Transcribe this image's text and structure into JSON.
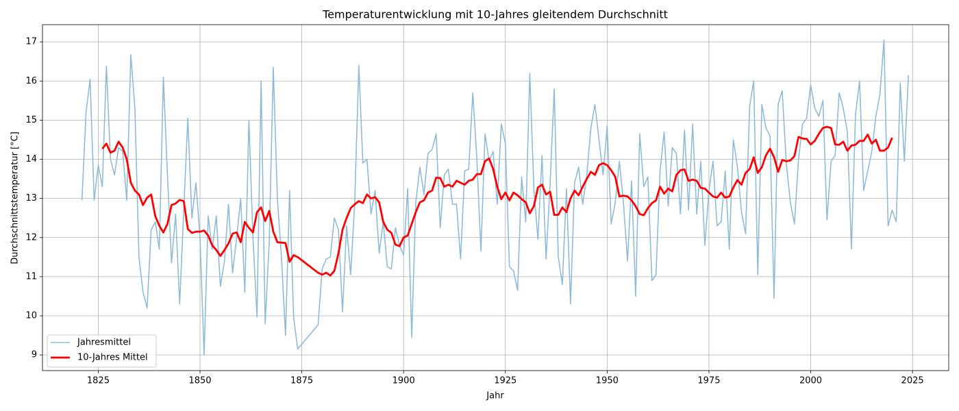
{
  "chart_data": {
    "type": "line",
    "title": "Temperaturentwicklung mit 10-Jahres gleitendem Durchschnitt",
    "xlabel": "Jahr",
    "ylabel": "Durchschnittstemperatur [°C]",
    "xlim": [
      1811.3,
      2033.9
    ],
    "ylim": [
      8.6,
      17.44
    ],
    "xticks": [
      1825,
      1850,
      1875,
      1900,
      1925,
      1950,
      1975,
      2000,
      2025
    ],
    "yticks": [
      9,
      10,
      11,
      12,
      13,
      14,
      15,
      16,
      17
    ],
    "grid": true,
    "legend": "lower left",
    "series": [
      {
        "name": "Jahresmittel",
        "color": "#8fbbd9",
        "x": [
          1821,
          1822,
          1823,
          1824,
          1825,
          1826,
          1827,
          1828,
          1829,
          1830,
          1831,
          1832,
          1833,
          1834,
          1835,
          1836,
          1837,
          1838,
          1839,
          1840,
          1841,
          1842,
          1843,
          1844,
          1845,
          1846,
          1847,
          1848,
          1849,
          1850,
          1851,
          1852,
          1853,
          1854,
          1855,
          1856,
          1857,
          1858,
          1859,
          1860,
          1861,
          1862,
          1863,
          1864,
          1865,
          1866,
          1867,
          1868,
          1869,
          1870,
          1871,
          1872,
          1873,
          1874,
          1879,
          1880,
          1881,
          1882,
          1883,
          1884,
          1885,
          1886,
          1887,
          1888,
          1889,
          1890,
          1891,
          1892,
          1893,
          1894,
          1895,
          1896,
          1897,
          1898,
          1899,
          1900,
          1901,
          1902,
          1903,
          1904,
          1905,
          1906,
          1907,
          1908,
          1909,
          1910,
          1911,
          1912,
          1913,
          1914,
          1915,
          1916,
          1917,
          1918,
          1919,
          1920,
          1921,
          1922,
          1923,
          1924,
          1925,
          1926,
          1927,
          1928,
          1929,
          1930,
          1931,
          1932,
          1933,
          1934,
          1935,
          1936,
          1937,
          1938,
          1939,
          1940,
          1941,
          1942,
          1943,
          1944,
          1945,
          1946,
          1947,
          1948,
          1949,
          1950,
          1951,
          1952,
          1953,
          1954,
          1955,
          1956,
          1957,
          1958,
          1959,
          1960,
          1961,
          1962,
          1963,
          1964,
          1965,
          1966,
          1967,
          1968,
          1969,
          1970,
          1971,
          1972,
          1973,
          1974,
          1975,
          1976,
          1977,
          1978,
          1979,
          1980,
          1981,
          1982,
          1983,
          1984,
          1985,
          1986,
          1987,
          1988,
          1989,
          1990,
          1991,
          1992,
          1993,
          1994,
          1995,
          1996,
          1997,
          1998,
          1999,
          2000,
          2001,
          2002,
          2003,
          2004,
          2005,
          2006,
          2007,
          2008,
          2009,
          2010,
          2011,
          2012,
          2013,
          2014,
          2015,
          2016,
          2017,
          2018,
          2019,
          2020,
          2021,
          2022,
          2023,
          2024
        ],
        "values": [
          12.95,
          15.2,
          16.05,
          12.95,
          13.85,
          13.3,
          16.38,
          14.0,
          13.6,
          14.3,
          14.2,
          12.95,
          16.67,
          15.3,
          11.5,
          10.6,
          10.2,
          12.2,
          12.4,
          11.7,
          16.1,
          13.6,
          11.35,
          12.6,
          10.3,
          12.7,
          15.05,
          12.5,
          13.4,
          12.0,
          9.0,
          12.55,
          11.7,
          12.55,
          10.75,
          11.4,
          12.85,
          11.1,
          12.0,
          13.0,
          10.6,
          15.0,
          12.0,
          9.97,
          16.0,
          9.8,
          11.9,
          16.35,
          13.0,
          11.5,
          9.5,
          13.2,
          9.95,
          9.15,
          9.77,
          11.2,
          11.45,
          11.5,
          12.5,
          12.2,
          10.1,
          12.3,
          11.05,
          12.9,
          16.4,
          13.9,
          14.0,
          12.6,
          13.2,
          11.6,
          12.4,
          11.25,
          11.2,
          12.25,
          11.8,
          11.55,
          13.25,
          9.45,
          12.9,
          13.8,
          13.1,
          14.15,
          14.25,
          14.65,
          12.25,
          13.6,
          13.75,
          12.85,
          12.85,
          11.45,
          13.7,
          13.75,
          15.7,
          14.0,
          11.65,
          14.65,
          13.95,
          14.2,
          12.85,
          14.9,
          14.4,
          11.25,
          11.15,
          10.65,
          13.55,
          12.4,
          16.2,
          13.25,
          11.95,
          14.1,
          11.45,
          13.4,
          15.8,
          11.5,
          10.8,
          13.25,
          10.3,
          13.4,
          13.8,
          12.85,
          13.6,
          14.8,
          15.4,
          14.5,
          13.6,
          14.85,
          12.35,
          12.9,
          13.95,
          12.9,
          11.4,
          13.45,
          10.5,
          14.65,
          13.3,
          13.55,
          10.9,
          11.05,
          13.7,
          14.7,
          12.8,
          14.3,
          14.15,
          12.6,
          14.75,
          12.7,
          14.9,
          12.6,
          13.95,
          11.8,
          13.2,
          13.95,
          12.3,
          12.4,
          13.7,
          11.7,
          14.5,
          13.8,
          12.65,
          12.1,
          15.35,
          16.0,
          11.05,
          15.4,
          14.8,
          14.6,
          10.45,
          15.4,
          15.75,
          13.9,
          12.9,
          12.35,
          14.0,
          14.9,
          15.05,
          15.9,
          15.3,
          15.1,
          15.5,
          12.45,
          13.95,
          14.1,
          15.7,
          15.3,
          14.7,
          11.7,
          15.15,
          16.0,
          13.2,
          13.7,
          14.2,
          15.1,
          15.65,
          17.05,
          12.3,
          12.7,
          12.4,
          15.95,
          13.95,
          16.15
        ]
      },
      {
        "name": "10-Jahres Mittel",
        "color": "#ff0000",
        "x": [
          1826,
          1827,
          1828,
          1829,
          1830,
          1831,
          1832,
          1833,
          1834,
          1835,
          1836,
          1837,
          1838,
          1839,
          1840,
          1841,
          1842,
          1843,
          1844,
          1845,
          1846,
          1847,
          1848,
          1849,
          1850,
          1851,
          1852,
          1853,
          1854,
          1855,
          1856,
          1857,
          1858,
          1859,
          1860,
          1861,
          1862,
          1863,
          1864,
          1865,
          1866,
          1867,
          1868,
          1869,
          1870,
          1871,
          1872,
          1873,
          1874,
          1879,
          1880,
          1881,
          1882,
          1883,
          1884,
          1885,
          1886,
          1887,
          1888,
          1889,
          1890,
          1891,
          1892,
          1893,
          1894,
          1895,
          1896,
          1897,
          1898,
          1899,
          1900,
          1901,
          1902,
          1903,
          1904,
          1905,
          1906,
          1907,
          1908,
          1909,
          1910,
          1911,
          1912,
          1913,
          1914,
          1915,
          1916,
          1917,
          1918,
          1919,
          1920,
          1921,
          1922,
          1923,
          1924,
          1925,
          1926,
          1927,
          1928,
          1929,
          1930,
          1931,
          1932,
          1933,
          1934,
          1935,
          1936,
          1937,
          1938,
          1939,
          1940,
          1941,
          1942,
          1943,
          1944,
          1945,
          1946,
          1947,
          1948,
          1949,
          1950,
          1951,
          1952,
          1953,
          1954,
          1955,
          1956,
          1957,
          1958,
          1959,
          1960,
          1961,
          1962,
          1963,
          1964,
          1965,
          1966,
          1967,
          1968,
          1969,
          1970,
          1971,
          1972,
          1973,
          1974,
          1975,
          1976,
          1977,
          1978,
          1979,
          1980,
          1981,
          1982,
          1983,
          1984,
          1985,
          1986,
          1987,
          1988,
          1989,
          1990,
          1991,
          1992,
          1993,
          1994,
          1995,
          1996,
          1997,
          1998,
          1999,
          2000,
          2001,
          2002,
          2003,
          2004,
          2005,
          2006,
          2007,
          2008,
          2009,
          2010,
          2011,
          2012,
          2013,
          2014,
          2015,
          2016,
          2017,
          2018,
          2019,
          2020
        ],
        "values": [
          14.27,
          14.4,
          14.17,
          14.22,
          14.45,
          14.3,
          14.0,
          13.4,
          13.2,
          13.1,
          12.83,
          13.02,
          13.1,
          12.55,
          12.3,
          12.13,
          12.35,
          12.83,
          12.87,
          12.96,
          12.93,
          12.22,
          12.12,
          12.15,
          12.15,
          12.18,
          12.05,
          11.8,
          11.68,
          11.53,
          11.68,
          11.85,
          12.1,
          12.13,
          11.88,
          12.4,
          12.25,
          12.13,
          12.65,
          12.77,
          12.42,
          12.68,
          12.15,
          11.88,
          11.87,
          11.86,
          11.38,
          11.55,
          11.5,
          11.1,
          11.05,
          11.1,
          11.03,
          11.15,
          11.6,
          12.2,
          12.5,
          12.75,
          12.85,
          12.93,
          12.88,
          13.1,
          13.0,
          13.03,
          12.9,
          12.4,
          12.2,
          12.12,
          11.82,
          11.78,
          12.0,
          12.05,
          12.35,
          12.65,
          12.9,
          12.95,
          13.15,
          13.2,
          13.53,
          13.52,
          13.3,
          13.35,
          13.3,
          13.45,
          13.4,
          13.35,
          13.45,
          13.48,
          13.62,
          13.62,
          13.95,
          14.02,
          13.75,
          13.3,
          12.98,
          13.15,
          12.95,
          13.15,
          13.08,
          12.98,
          12.9,
          12.62,
          12.8,
          13.28,
          13.35,
          13.1,
          13.17,
          12.58,
          12.58,
          12.77,
          12.65,
          13.0,
          13.2,
          13.08,
          13.3,
          13.5,
          13.68,
          13.6,
          13.85,
          13.9,
          13.85,
          13.72,
          13.55,
          13.05,
          13.07,
          13.05,
          12.95,
          12.8,
          12.6,
          12.57,
          12.75,
          12.88,
          12.95,
          13.3,
          13.12,
          13.25,
          13.18,
          13.6,
          13.72,
          13.74,
          13.45,
          13.48,
          13.45,
          13.27,
          13.25,
          13.15,
          13.05,
          13.02,
          13.15,
          13.02,
          13.05,
          13.28,
          13.47,
          13.35,
          13.65,
          13.75,
          14.05,
          13.65,
          13.8,
          14.1,
          14.27,
          14.05,
          13.68,
          13.98,
          13.95,
          13.97,
          14.08,
          14.57,
          14.53,
          14.52,
          14.38,
          14.47,
          14.65,
          14.8,
          14.83,
          14.8,
          14.38,
          14.37,
          14.45,
          14.22,
          14.35,
          14.37,
          14.47,
          14.47,
          14.63,
          14.4,
          14.5,
          14.22,
          14.22,
          14.3,
          14.55
        ]
      }
    ]
  }
}
